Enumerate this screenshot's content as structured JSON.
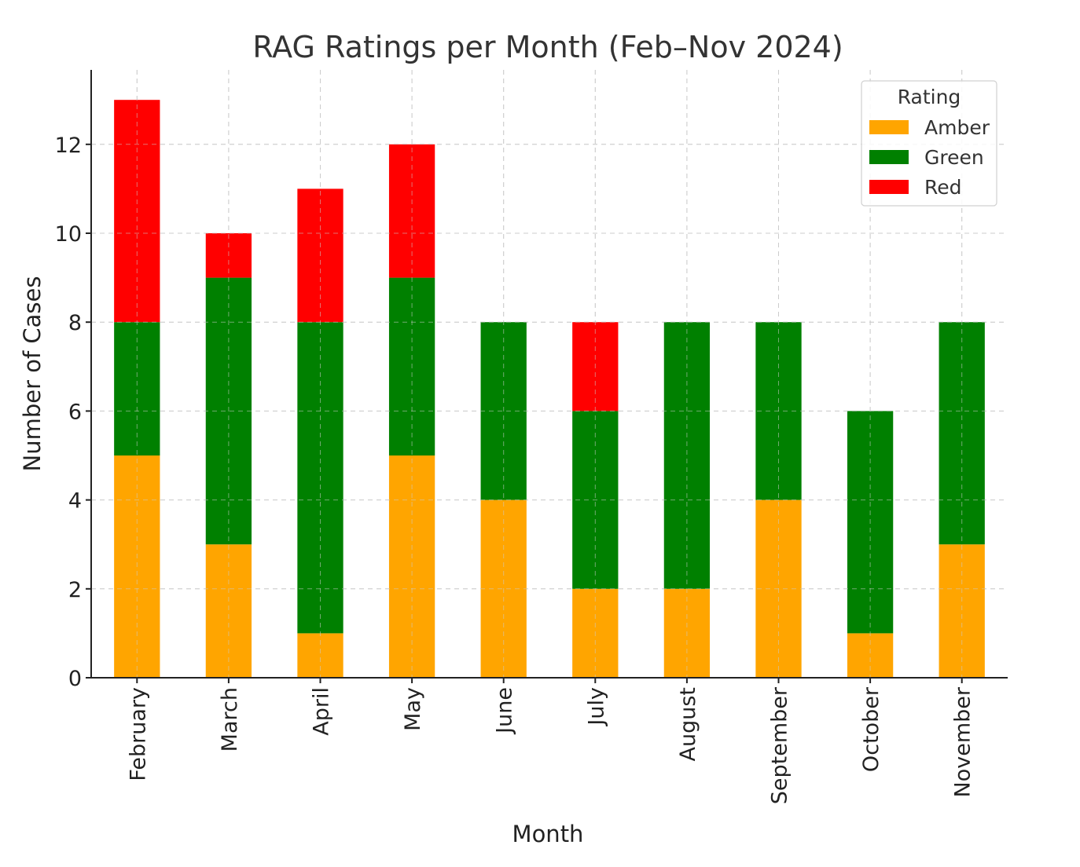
{
  "chart_data": {
    "type": "bar",
    "stacked": true,
    "title": "RAG Ratings per Month (Feb–Nov 2024)",
    "xlabel": "Month",
    "ylabel": "Number of Cases",
    "categories": [
      "February",
      "March",
      "April",
      "May",
      "June",
      "July",
      "August",
      "September",
      "October",
      "November"
    ],
    "series": [
      {
        "name": "Amber",
        "color": "#ffa500",
        "values": [
          5,
          3,
          1,
          5,
          4,
          2,
          2,
          4,
          1,
          3
        ]
      },
      {
        "name": "Green",
        "color": "#008000",
        "values": [
          3,
          6,
          7,
          4,
          4,
          4,
          6,
          4,
          5,
          5
        ]
      },
      {
        "name": "Red",
        "color": "#ff0000",
        "values": [
          5,
          1,
          3,
          3,
          0,
          2,
          0,
          0,
          0,
          0
        ]
      }
    ],
    "ylim": [
      0,
      13.65
    ],
    "yticks": [
      0,
      2,
      4,
      6,
      8,
      10,
      12
    ],
    "grid": true,
    "legend": {
      "title": "Rating",
      "placement": "top-right"
    }
  }
}
